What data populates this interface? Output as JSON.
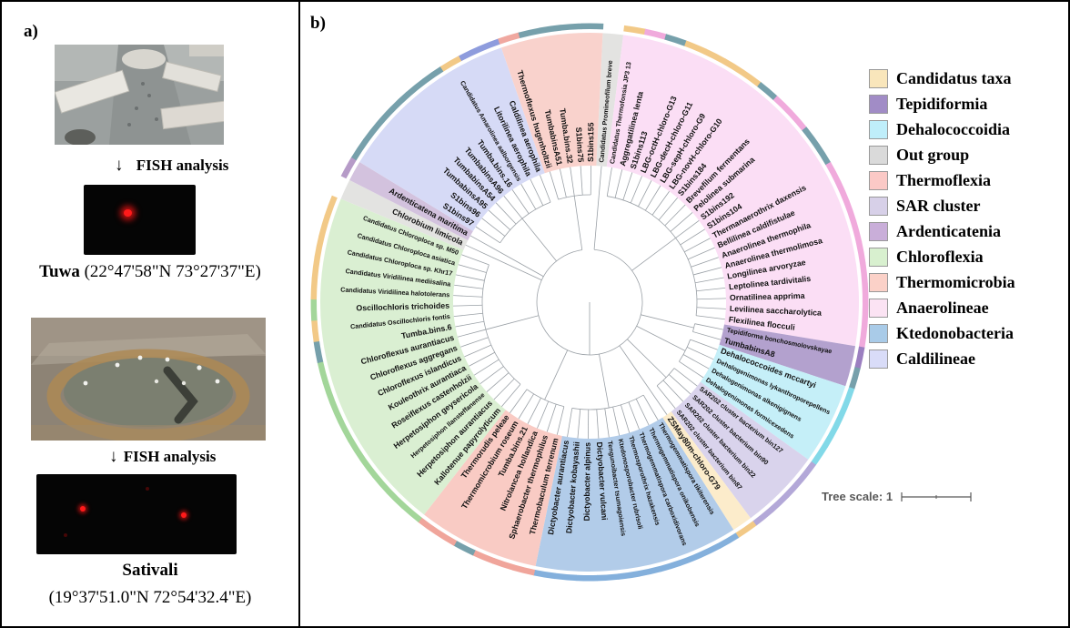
{
  "panel_a": {
    "label": "a)",
    "fish_label_1": "FISH analysis",
    "fish_label_2": "FISH analysis",
    "arrow": "↓",
    "site_1_name": "Tuwa",
    "site_1_coords": "(22°47'58\"N 73°27'37\"E)",
    "site_2_name": "Sativali",
    "site_2_coords": "(19°37'51.0\"N 72°54'32.4\"E)"
  },
  "panel_b": {
    "label": "b)",
    "tree_scale_label": "Tree scale: 1",
    "legend": [
      {
        "label": "Candidatus taxa",
        "color": "#f9e6bb"
      },
      {
        "label": "Tepidiformia",
        "color": "#a18cc6"
      },
      {
        "label": "Dehalococcoidia",
        "color": "#bfeefa"
      },
      {
        "label": "Out group",
        "color": "#dadada"
      },
      {
        "label": "Thermoflexia",
        "color": "#fbc9c6"
      },
      {
        "label": "SAR cluster",
        "color": "#d7d0e8"
      },
      {
        "label": "Ardenticatenia",
        "color": "#c9aed9"
      },
      {
        "label": "Chloroflexia",
        "color": "#d8f0cf"
      },
      {
        "label": "Thermomicrobia",
        "color": "#fbd1c8"
      },
      {
        "label": "Anaerolineae",
        "color": "#fbe3f3"
      },
      {
        "label": "Ktedonobacteria",
        "color": "#a9cbe8"
      },
      {
        "label": "Caldilineae",
        "color": "#d9dcf8"
      }
    ]
  },
  "chart_data": {
    "type": "circular_phylogenetic_tree",
    "tree_scale": 1,
    "start_angle": 5,
    "mark_colors": {
      "bin": "#76a0ab",
      "cand": "#f2c987"
    },
    "groups": {
      "outgroup": {
        "fill": "#e3e3e1",
        "ring": "#ffffff"
      },
      "anaerolineae": {
        "fill": "#fbdef5",
        "ring": "#f0aadc"
      },
      "tepidiformia": {
        "fill": "#b3a1ce",
        "ring": "#9b7fc0"
      },
      "dehalococcoidia": {
        "fill": "#c5eff8",
        "ring": "#82d9e8"
      },
      "sar": {
        "fill": "#d9d3ec",
        "ring": "#b3a8d8"
      },
      "candidatus": {
        "fill": "#fceccb",
        "ring": "#f2c987"
      },
      "ktedonobacteria": {
        "fill": "#b2cce9",
        "ring": "#84b0dc"
      },
      "thermomicrobia": {
        "fill": "#f9cbc4",
        "ring": "#f0a59b"
      },
      "chloroflexia": {
        "fill": "#daefd2",
        "ring": "#a3d69a"
      },
      "ardenticatenia": {
        "fill": "#d3c2de",
        "ring": "#b69bc8"
      },
      "caldilineae": {
        "fill": "#d6daf6",
        "ring": "#8e9cdd"
      },
      "thermoflexia": {
        "fill": "#f9d2cc",
        "ring": "#f0a8a0"
      }
    },
    "leaves": [
      {
        "n": "Candidatus Promineofilum breve",
        "g": "outgroup"
      },
      {
        "n": "Candidatus Thermofonsia JP3 13",
        "g": "anaerolineae",
        "m": "cand"
      },
      {
        "n": "Aggregatilinea lenta",
        "g": "anaerolineae"
      },
      {
        "n": "S1bins113",
        "g": "anaerolineae",
        "m": "bin"
      },
      {
        "n": "LBG-octH-chloro-G13",
        "g": "anaerolineae",
        "m": "cand"
      },
      {
        "n": "LBG-decH-chloro-G11",
        "g": "anaerolineae",
        "m": "cand"
      },
      {
        "n": "LBG-sepH-chloro-G9",
        "g": "anaerolineae",
        "m": "cand"
      },
      {
        "n": "LBG-novH-chloro-G10",
        "g": "anaerolineae",
        "m": "cand"
      },
      {
        "n": "S1bins184",
        "g": "anaerolineae",
        "m": "bin"
      },
      {
        "n": "Brevefilum fermentans",
        "g": "anaerolineae"
      },
      {
        "n": "Pelolinea submarina",
        "g": "anaerolineae"
      },
      {
        "n": "S1bins192",
        "g": "anaerolineae",
        "m": "bin"
      },
      {
        "n": "S1bins104",
        "g": "anaerolineae",
        "m": "bin"
      },
      {
        "n": "Thermanaerothrix daxensis",
        "g": "anaerolineae"
      },
      {
        "n": "Bellilinea caldifistulae",
        "g": "anaerolineae"
      },
      {
        "n": "Anaerolinea thermophila",
        "g": "anaerolineae"
      },
      {
        "n": "Anaerolinea thermolimosa",
        "g": "anaerolineae"
      },
      {
        "n": "Longilinea arvoryzae",
        "g": "anaerolineae"
      },
      {
        "n": "Leptolinea tardivitalis",
        "g": "anaerolineae"
      },
      {
        "n": "Ornatilinea apprima",
        "g": "anaerolineae"
      },
      {
        "n": "Levilinea saccharolytica",
        "g": "anaerolineae"
      },
      {
        "n": "Flexilinea flocculi",
        "g": "anaerolineae"
      },
      {
        "n": "Tepidiforma bonchosmolovskayae",
        "g": "tepidiformia"
      },
      {
        "n": "TumbabinsA8",
        "g": "tepidiformia",
        "m": "bin"
      },
      {
        "n": "Dehalococcoides mccartyi",
        "g": "dehalococcoidia"
      },
      {
        "n": "Dehalogenimonas lykanthroporepellens",
        "g": "dehalococcoidia"
      },
      {
        "n": "Dehalogenimonas alkenigignens",
        "g": "dehalococcoidia"
      },
      {
        "n": "Dehalogenimonas formicexedens",
        "g": "dehalococcoidia"
      },
      {
        "n": "SAR202 cluster bacterium bin127",
        "g": "sar"
      },
      {
        "n": "SAR202 cluster bacterium bin90",
        "g": "sar"
      },
      {
        "n": "SAR202 cluster bacterium bin22",
        "g": "sar"
      },
      {
        "n": "SAR202 cluster bacterium bin87",
        "g": "sar"
      },
      {
        "n": "ZSMay80m-chloro-G79",
        "g": "candidatus",
        "m": "cand"
      },
      {
        "n": "Thermogemmatispora tikiterensis",
        "g": "ktedonobacteria"
      },
      {
        "n": "Thermogemmatispora onikobensis",
        "g": "ktedonobacteria"
      },
      {
        "n": "Thermogemmatispora carboxidivorans",
        "g": "ktedonobacteria"
      },
      {
        "n": "Thermosporothrix hazakensis",
        "g": "ktedonobacteria"
      },
      {
        "n": "Ktedonosporobacter rubrisoli",
        "g": "ktedonobacteria"
      },
      {
        "n": "Tengunoibacter tsumagoiensis",
        "g": "ktedonobacteria"
      },
      {
        "n": "Dictyobacter vulcani",
        "g": "ktedonobacteria"
      },
      {
        "n": "Dictyobacter alpinus",
        "g": "ktedonobacteria"
      },
      {
        "n": "Dictyobacter kobayashii",
        "g": "ktedonobacteria"
      },
      {
        "n": "Dictyobacter aurantiacus",
        "g": "ktedonobacteria"
      },
      {
        "n": "Thermobaculum terrenum",
        "g": "thermomicrobia"
      },
      {
        "n": "Sphaerobacter thermophilus",
        "g": "thermomicrobia"
      },
      {
        "n": "Nitrolancea hollandica",
        "g": "thermomicrobia"
      },
      {
        "n": "Tumba.bins.21",
        "g": "thermomicrobia",
        "m": "bin"
      },
      {
        "n": "Thermomicrobium roseum",
        "g": "thermomicrobia"
      },
      {
        "n": "Thermorudis peleae",
        "g": "thermomicrobia"
      },
      {
        "n": "Kallotenue papyrolyticum",
        "g": "chloroflexia"
      },
      {
        "n": "Herpetosiphon aurantiacus",
        "g": "chloroflexia"
      },
      {
        "n": "Herpetosiphon llansteffanense",
        "g": "chloroflexia"
      },
      {
        "n": "Herpetosiphon geysericola",
        "g": "chloroflexia"
      },
      {
        "n": "Roseiflexus castenholzii",
        "g": "chloroflexia"
      },
      {
        "n": "Kouleothrix aurantiaca",
        "g": "chloroflexia"
      },
      {
        "n": "Chloroflexus islandicus",
        "g": "chloroflexia"
      },
      {
        "n": "Chloroflexus aggregans",
        "g": "chloroflexia"
      },
      {
        "n": "Chloroflexus aurantiacus",
        "g": "chloroflexia"
      },
      {
        "n": "Tumba.bins.6",
        "g": "chloroflexia",
        "m": "bin"
      },
      {
        "n": "Candidatus Oscillochloris fontis",
        "g": "chloroflexia",
        "m": "cand"
      },
      {
        "n": "Oscillochloris trichoides",
        "g": "chloroflexia"
      },
      {
        "n": "Candidatus Viridilinea halotolerans",
        "g": "chloroflexia",
        "m": "cand"
      },
      {
        "n": "Candidatus Viridilinea mediisalina",
        "g": "chloroflexia",
        "m": "cand"
      },
      {
        "n": "Candidatus Chloroploca sp. Khr17",
        "g": "chloroflexia",
        "m": "cand"
      },
      {
        "n": "Candidatus Chloroploca asiatica",
        "g": "chloroflexia",
        "m": "cand"
      },
      {
        "n": "Candidatus Chloroploca sp. M50",
        "g": "chloroflexia",
        "m": "cand"
      },
      {
        "n": "Chlorobium limicola",
        "g": "outgroup"
      },
      {
        "n": "Ardenticatena maritima",
        "g": "ardenticatenia"
      },
      {
        "n": "S1bins97",
        "g": "caldilineae",
        "m": "bin"
      },
      {
        "n": "S1bins96",
        "g": "caldilineae",
        "m": "bin"
      },
      {
        "n": "TumbabinsA95",
        "g": "caldilineae",
        "m": "bin"
      },
      {
        "n": "TumbabinsA54",
        "g": "caldilineae",
        "m": "bin"
      },
      {
        "n": "TumbabinsA96",
        "g": "caldilineae",
        "m": "bin"
      },
      {
        "n": "Tumba.bins.16",
        "g": "caldilineae",
        "m": "bin"
      },
      {
        "n": "Candidatus Amarolinea aalborgensis",
        "g": "caldilineae",
        "m": "cand"
      },
      {
        "n": "Litorilinea aerophila",
        "g": "caldilineae"
      },
      {
        "n": "Caldilinea aerophila",
        "g": "caldilineae"
      },
      {
        "n": "Thermoflexus hugenholtzii",
        "g": "thermoflexia"
      },
      {
        "n": "TumbabinsA51",
        "g": "thermoflexia",
        "m": "bin"
      },
      {
        "n": "Tumba.bins.32",
        "g": "thermoflexia",
        "m": "bin"
      },
      {
        "n": "S1bins75",
        "g": "thermoflexia",
        "m": "bin"
      },
      {
        "n": "S1bins155",
        "g": "thermoflexia",
        "m": "bin"
      }
    ]
  }
}
